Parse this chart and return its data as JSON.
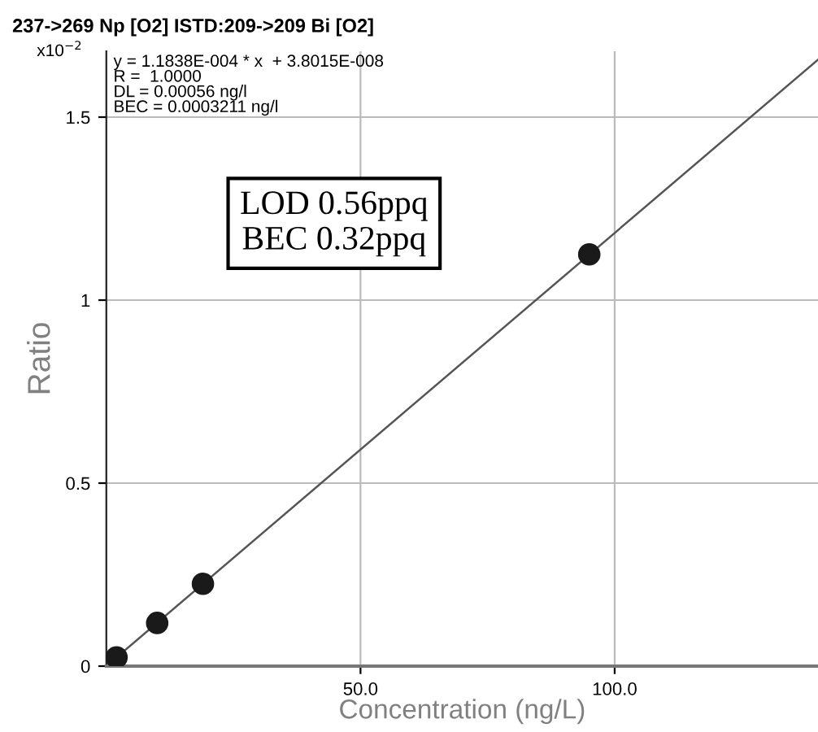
{
  "chart_data": {
    "type": "scatter",
    "title": "237->269 Np [O2] ISTD:209->209 Bi [O2]",
    "xlabel": "Concentration (ng/L)",
    "ylabel": "Ratio",
    "annotations": [
      "x10$^{−2}$",
      "y = 1.1838E-004 * x  + 3.8015E-008\nR =  1.0000\nDL = 0.00056 ng/l\nBEC = 0.0003211 ng/l",
      "LOD 0.56ppq\nBEC 0.32ppq"
    ],
    "series": [
      {
        "type": "line",
        "color": "#555555",
        "x": [
          0,
          140
        ],
        "values": [
          0,
          1.657
        ],
        "marker": "none"
      },
      {
        "color": "#1a1a1a",
        "x": [
          2,
          10,
          19,
          95
        ],
        "values": [
          0.024,
          0.118,
          0.225,
          1.125
        ],
        "marker": "circle"
      }
    ],
    "xlim": [
      0,
      140
    ],
    "ylim": [
      0,
      1.68
    ],
    "xticks": [
      {
        "value": 50,
        "label": "50.0"
      },
      {
        "value": 100,
        "label": "100.0"
      }
    ],
    "yticks": [
      0,
      0.5,
      1,
      1.5
    ],
    "grid": true,
    "legend": false
  }
}
